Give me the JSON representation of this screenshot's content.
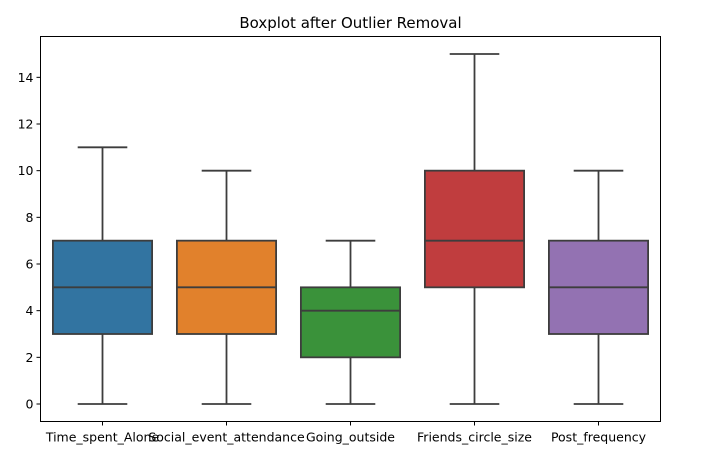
{
  "chart_data": {
    "type": "box",
    "title": "Boxplot after Outlier Removal",
    "xlabel": "",
    "ylabel": "",
    "ylim": [
      -0.75,
      15.75
    ],
    "yticks": [
      0,
      2,
      4,
      6,
      8,
      10,
      12,
      14
    ],
    "grid": false,
    "categories": [
      "Time_spent_Alone",
      "Social_event_attendance",
      "Going_outside",
      "Friends_circle_size",
      "Post_frequency"
    ],
    "boxes": [
      {
        "min": 0,
        "q1": 3,
        "median": 5,
        "q3": 7,
        "max": 11,
        "color": "#3274a1"
      },
      {
        "min": 0,
        "q1": 3,
        "median": 5,
        "q3": 7,
        "max": 10,
        "color": "#e1812c"
      },
      {
        "min": 0,
        "q1": 2,
        "median": 4,
        "q3": 5,
        "max": 7,
        "color": "#3a923a"
      },
      {
        "min": 0,
        "q1": 5,
        "median": 7,
        "q3": 10,
        "max": 15,
        "color": "#c03d3e"
      },
      {
        "min": 0,
        "q1": 3,
        "median": 5,
        "q3": 7,
        "max": 10,
        "color": "#9372b2"
      }
    ]
  }
}
